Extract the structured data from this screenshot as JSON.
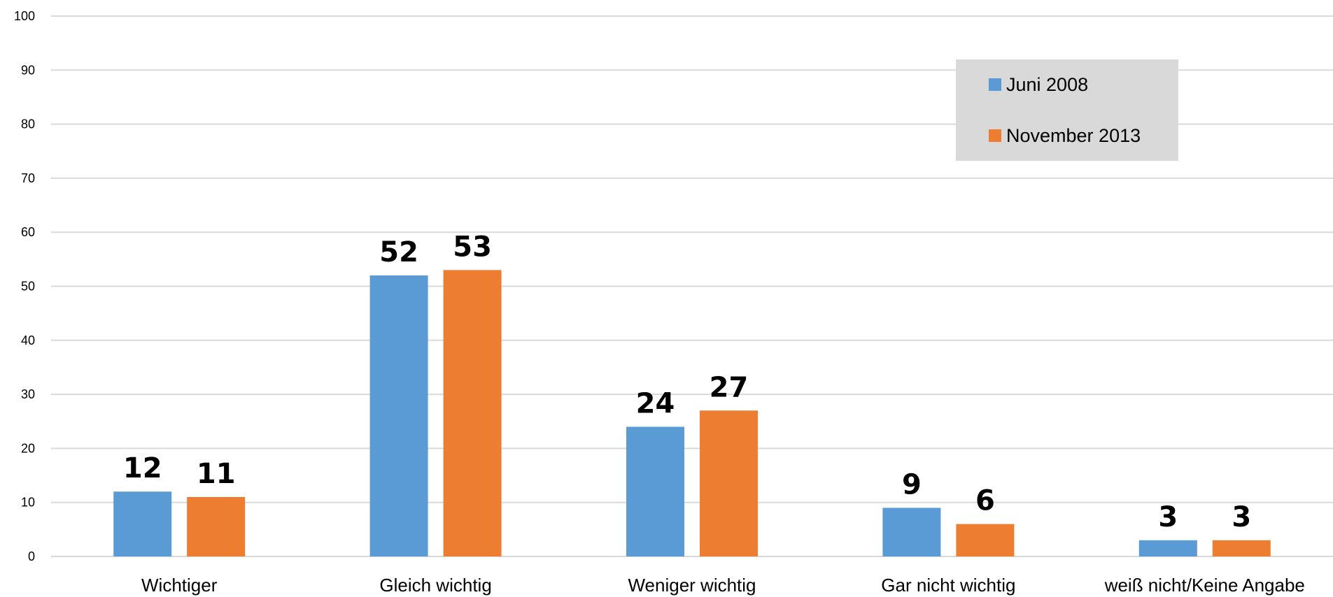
{
  "chart_data": {
    "type": "bar",
    "categories": [
      "Wichtiger",
      "Gleich wichtig",
      "Weniger wichtig",
      "Gar nicht wichtig",
      "weiß nicht/Keine Angabe"
    ],
    "series": [
      {
        "name": "Juni 2008",
        "values": [
          12,
          52,
          24,
          9,
          3
        ],
        "color": "#5B9BD5"
      },
      {
        "name": "November 2013",
        "values": [
          11,
          53,
          27,
          6,
          3
        ],
        "color": "#ED7D31"
      }
    ],
    "yticks": [
      "0",
      "10",
      "20",
      "30",
      "40",
      "50",
      "60",
      "70",
      "80",
      "90",
      "100"
    ],
    "ylim": [
      0,
      100
    ],
    "grid": true,
    "legend": {
      "position": "top-right",
      "background": "#D9D9D9"
    },
    "gridColor": "#D9D9D9"
  }
}
